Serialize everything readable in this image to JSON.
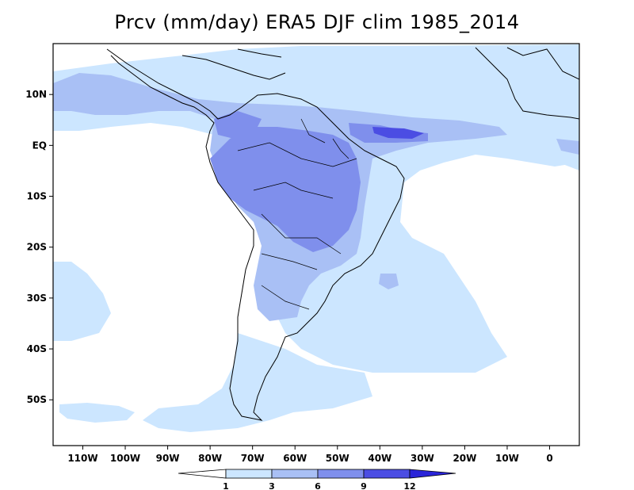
{
  "title": "Prcv (mm/day) ERA5 DJF clim 1985_2014",
  "map": {
    "lon_range": [
      -117,
      7
    ],
    "lat_range": [
      -59,
      20
    ],
    "lat_ticks": [
      {
        "value": 10,
        "label": "10N"
      },
      {
        "value": 0,
        "label": "EQ"
      },
      {
        "value": -10,
        "label": "10S"
      },
      {
        "value": -20,
        "label": "20S"
      },
      {
        "value": -30,
        "label": "30S"
      },
      {
        "value": -40,
        "label": "40S"
      },
      {
        "value": -50,
        "label": "50S"
      }
    ],
    "lon_ticks": [
      {
        "value": -110,
        "label": "110W"
      },
      {
        "value": -100,
        "label": "100W"
      },
      {
        "value": -90,
        "label": "90W"
      },
      {
        "value": -80,
        "label": "80W"
      },
      {
        "value": -70,
        "label": "70W"
      },
      {
        "value": -60,
        "label": "60W"
      },
      {
        "value": -50,
        "label": "50W"
      },
      {
        "value": -40,
        "label": "40W"
      },
      {
        "value": -30,
        "label": "30W"
      },
      {
        "value": -20,
        "label": "20W"
      },
      {
        "value": -10,
        "label": "10W"
      },
      {
        "value": 0,
        "label": "0"
      }
    ]
  },
  "colorbar": {
    "labels": [
      "1",
      "3",
      "6",
      "9",
      "12"
    ],
    "colors": [
      "#ffffff",
      "#cce6ff",
      "#a9c0f5",
      "#7f8fec",
      "#4b4de3",
      "#2a24d8"
    ]
  }
}
